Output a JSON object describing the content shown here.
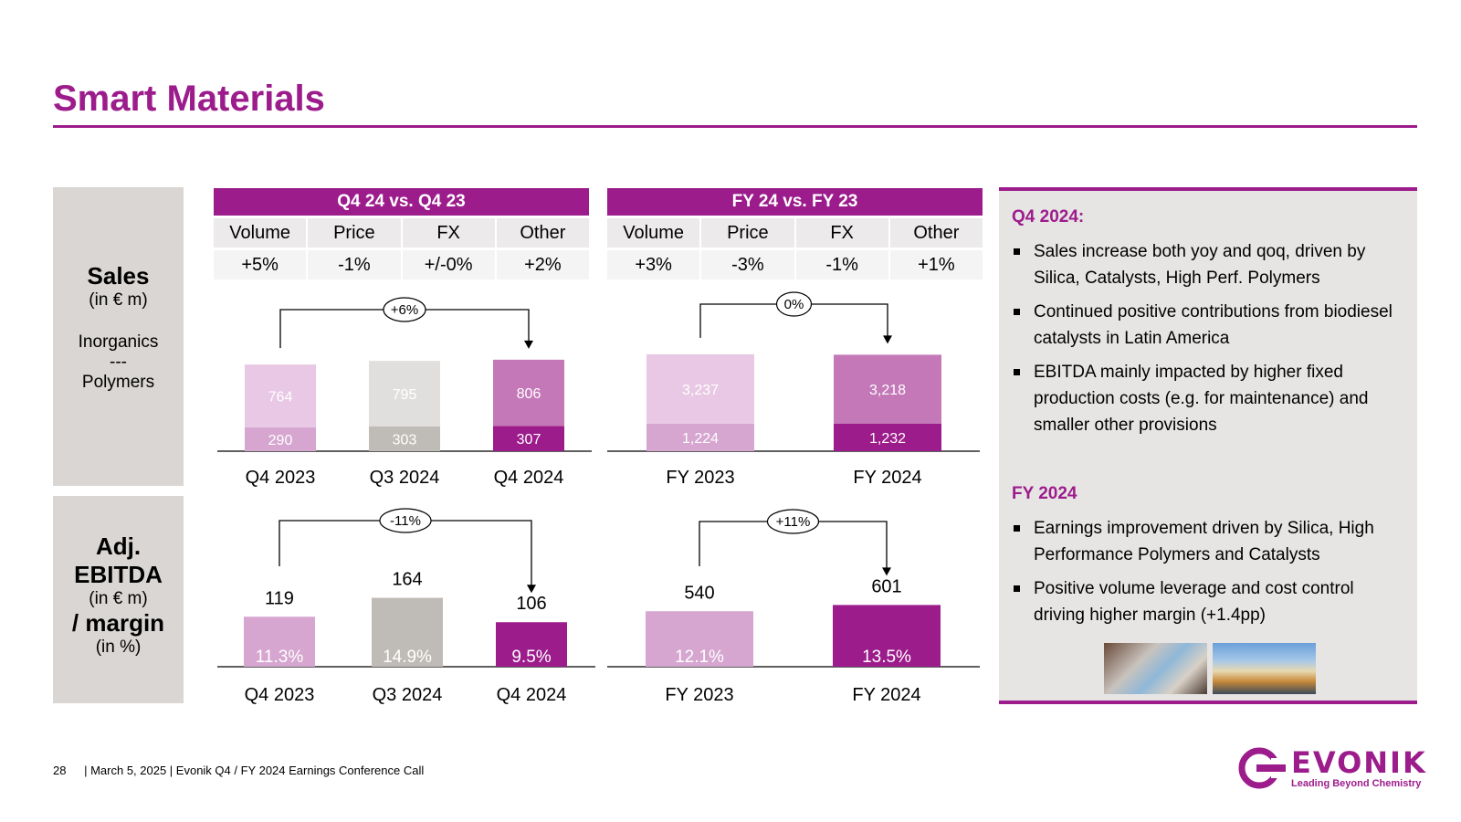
{
  "title": "Smart Materials",
  "colors": {
    "accent": "#9c1c8c",
    "light_pink": "#e8c8e4",
    "mid_pink": "#d6a6d0",
    "medium_magenta": "#c478b8",
    "dark_magenta": "#9c1c8c",
    "light_grey": "#e1dfdd",
    "mid_grey": "#bfbbb7",
    "panel_grey": "#e7e5e3"
  },
  "row_labels": {
    "sales": {
      "title": "Sales",
      "unit": "(in € m)",
      "line1": "Inorganics",
      "line2": "---",
      "line3": "Polymers"
    },
    "ebitda": {
      "line1": "Adj.",
      "line2": "EBITDA",
      "unit": "(in € m)",
      "line3": "/ margin",
      "unit2": "(in %)"
    }
  },
  "tables": [
    {
      "header": "Q4 24 vs. Q4 23",
      "columns": [
        "Volume",
        "Price",
        "FX",
        "Other"
      ],
      "values": [
        "+5%",
        "-1%",
        "+/-0%",
        "+2%"
      ]
    },
    {
      "header": "FY 24 vs. FY 23",
      "columns": [
        "Volume",
        "Price",
        "FX",
        "Other"
      ],
      "values": [
        "+3%",
        "-3%",
        "-1%",
        "+1%"
      ]
    }
  ],
  "chart_data": [
    {
      "type": "bar",
      "title": "Sales Q4",
      "categories": [
        "Q4 2023",
        "Q3 2024",
        "Q4 2024"
      ],
      "series": [
        {
          "name": "Inorganics",
          "values": [
            290,
            303,
            307
          ]
        },
        {
          "name": "Polymers",
          "values": [
            764,
            795,
            806
          ]
        }
      ],
      "change_label": "+6%"
    },
    {
      "type": "bar",
      "title": "Sales FY",
      "categories": [
        "FY 2023",
        "FY 2024"
      ],
      "series": [
        {
          "name": "Inorganics",
          "values": [
            "1,224",
            "1,232"
          ]
        },
        {
          "name": "Polymers",
          "values": [
            "3,237",
            "3,218"
          ]
        }
      ],
      "change_label": "0%"
    },
    {
      "type": "bar",
      "title": "Adj. EBITDA Q4",
      "categories": [
        "Q4 2023",
        "Q3 2024",
        "Q4 2024"
      ],
      "values": [
        119,
        164,
        106
      ],
      "margins": [
        "11.3%",
        "14.9%",
        "9.5%"
      ],
      "change_label": "-11%"
    },
    {
      "type": "bar",
      "title": "Adj. EBITDA FY",
      "categories": [
        "FY 2023",
        "FY 2024"
      ],
      "values": [
        540,
        601
      ],
      "margins": [
        "12.1%",
        "13.5%"
      ],
      "change_label": "+11%"
    }
  ],
  "panel": {
    "q4_heading": "Q4 2024:",
    "q4_bullets": [
      "Sales increase both yoy and qoq, driven by Silica, Catalysts, High Perf. Polymers",
      "Continued positive contributions from biodiesel catalysts in Latin America",
      "EBITDA mainly impacted by higher fixed production costs (e.g. for maintenance) and smaller other provisions"
    ],
    "fy_heading": "FY 2024",
    "fy_bullets": [
      "Earnings improvement driven by Silica, High Performance Polymers and Catalysts",
      "Positive volume leverage and cost control driving higher margin (+1.4pp)"
    ]
  },
  "footer": {
    "page": "28",
    "text": "|  March 5, 2025  |  Evonik Q4 / FY 2024 Earnings Conference Call"
  },
  "logo": {
    "word": "EVONIK",
    "tagline": "Leading Beyond Chemistry"
  }
}
